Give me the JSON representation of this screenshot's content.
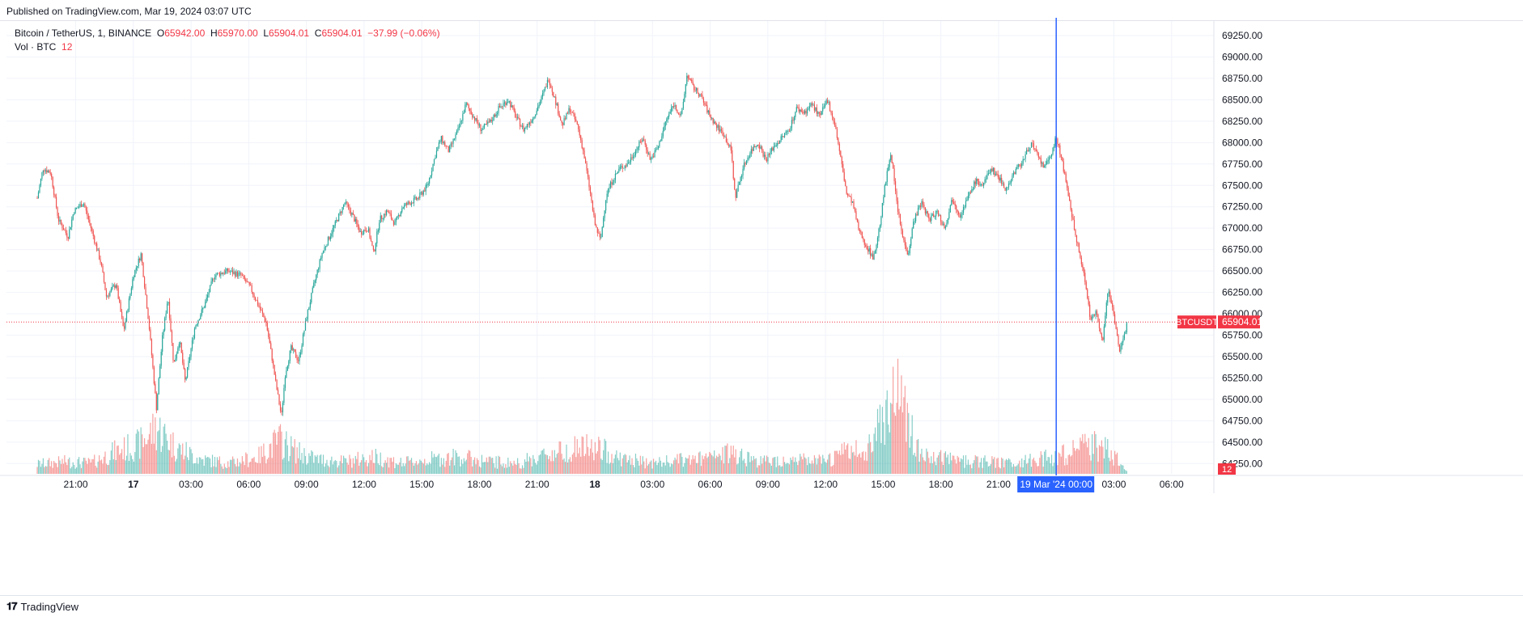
{
  "header": {
    "published": "Published on TradingView.com, Mar 19, 2024 03:07 UTC"
  },
  "legend": {
    "symbol": "Bitcoin / TetherUS, 1, BINANCE",
    "o_label": "O",
    "o_value": "65942.00",
    "h_label": "H",
    "h_value": "65970.00",
    "l_label": "L",
    "l_value": "65904.01",
    "c_label": "C",
    "c_value": "65904.01",
    "change": "−37.99 (−0.06%)",
    "vol_label": "Vol · BTC",
    "vol_value": "12"
  },
  "footer": {
    "brand": "TradingView"
  },
  "colors": {
    "up": "#26a69a",
    "down": "#ef5350",
    "crosshair": "#2962ff",
    "price_line": "#f23645",
    "grid": "#f0f3fa"
  },
  "chart_data": {
    "type": "candlestick",
    "symbol": "BTCUSDT",
    "interval": "1",
    "last_price": 65904.01,
    "last_price_label": "65904.01",
    "last_volume_label": "12",
    "y_axis_ticks": [
      "69250.00",
      "69000.00",
      "68750.00",
      "68500.00",
      "68250.00",
      "68000.00",
      "67750.00",
      "67500.00",
      "67250.00",
      "67000.00",
      "66750.00",
      "66500.00",
      "66250.00",
      "66000.00",
      "65750.00",
      "65500.00",
      "65250.00",
      "65000.00",
      "64750.00",
      "64500.00",
      "64250.00"
    ],
    "ylim": [
      64130,
      69420
    ],
    "x_axis_ticks": [
      "21:00",
      "17",
      "03:00",
      "06:00",
      "09:00",
      "12:00",
      "15:00",
      "18:00",
      "21:00",
      "18",
      "03:00",
      "06:00",
      "09:00",
      "12:00",
      "15:00",
      "18:00",
      "21:00",
      "03:00",
      "06:00"
    ],
    "x_axis_hours": [
      21,
      24,
      27,
      30,
      33,
      36,
      39,
      42,
      45,
      48,
      51,
      54,
      57,
      60,
      63,
      66,
      69,
      75,
      78
    ],
    "crosshair_label": "19 Mar '24   00:00",
    "crosshair_hours": 72,
    "price_path": [
      [
        19.0,
        67350
      ],
      [
        19.3,
        67700
      ],
      [
        19.7,
        67650
      ],
      [
        20.1,
        67100
      ],
      [
        20.6,
        66900
      ],
      [
        20.9,
        67200
      ],
      [
        21.4,
        67300
      ],
      [
        21.8,
        67000
      ],
      [
        22.3,
        66600
      ],
      [
        22.6,
        66200
      ],
      [
        23.1,
        66350
      ],
      [
        23.5,
        65800
      ],
      [
        24.0,
        66450
      ],
      [
        24.4,
        66700
      ],
      [
        24.8,
        65900
      ],
      [
        25.0,
        65400
      ],
      [
        25.2,
        64900
      ],
      [
        25.5,
        65700
      ],
      [
        25.8,
        66200
      ],
      [
        26.1,
        65400
      ],
      [
        26.4,
        65700
      ],
      [
        26.7,
        65200
      ],
      [
        27.2,
        65850
      ],
      [
        27.7,
        66100
      ],
      [
        28.2,
        66450
      ],
      [
        28.9,
        66500
      ],
      [
        29.6,
        66450
      ],
      [
        30.1,
        66300
      ],
      [
        30.6,
        66050
      ],
      [
        30.9,
        65900
      ],
      [
        31.2,
        65500
      ],
      [
        31.4,
        65200
      ],
      [
        31.7,
        64800
      ],
      [
        31.9,
        65300
      ],
      [
        32.2,
        65600
      ],
      [
        32.6,
        65450
      ],
      [
        33.0,
        65950
      ],
      [
        33.4,
        66350
      ],
      [
        33.8,
        66700
      ],
      [
        34.2,
        66900
      ],
      [
        34.6,
        67100
      ],
      [
        35.0,
        67300
      ],
      [
        35.4,
        67150
      ],
      [
        35.8,
        66950
      ],
      [
        36.2,
        67000
      ],
      [
        36.5,
        66700
      ],
      [
        36.8,
        67100
      ],
      [
        37.2,
        67200
      ],
      [
        37.6,
        67050
      ],
      [
        38.0,
        67250
      ],
      [
        38.4,
        67300
      ],
      [
        38.8,
        67350
      ],
      [
        39.3,
        67500
      ],
      [
        39.7,
        67850
      ],
      [
        40.0,
        68050
      ],
      [
        40.4,
        67900
      ],
      [
        40.9,
        68150
      ],
      [
        41.3,
        68450
      ],
      [
        41.7,
        68300
      ],
      [
        42.1,
        68150
      ],
      [
        42.6,
        68250
      ],
      [
        43.0,
        68400
      ],
      [
        43.5,
        68500
      ],
      [
        43.9,
        68300
      ],
      [
        44.3,
        68150
      ],
      [
        44.8,
        68300
      ],
      [
        45.2,
        68500
      ],
      [
        45.6,
        68750
      ],
      [
        46.0,
        68450
      ],
      [
        46.3,
        68200
      ],
      [
        46.7,
        68400
      ],
      [
        47.1,
        68200
      ],
      [
        47.4,
        67900
      ],
      [
        47.7,
        67500
      ],
      [
        48.0,
        67050
      ],
      [
        48.3,
        66850
      ],
      [
        48.6,
        67400
      ],
      [
        48.9,
        67550
      ],
      [
        49.3,
        67700
      ],
      [
        49.7,
        67750
      ],
      [
        50.1,
        67900
      ],
      [
        50.5,
        68050
      ],
      [
        50.9,
        67800
      ],
      [
        51.3,
        67950
      ],
      [
        51.7,
        68250
      ],
      [
        52.1,
        68450
      ],
      [
        52.5,
        68300
      ],
      [
        52.8,
        68800
      ],
      [
        53.1,
        68650
      ],
      [
        53.5,
        68550
      ],
      [
        53.9,
        68350
      ],
      [
        54.3,
        68200
      ],
      [
        54.7,
        68100
      ],
      [
        55.1,
        67900
      ],
      [
        55.3,
        67350
      ],
      [
        55.7,
        67700
      ],
      [
        56.1,
        67900
      ],
      [
        56.5,
        68000
      ],
      [
        56.9,
        67800
      ],
      [
        57.3,
        67950
      ],
      [
        57.7,
        68050
      ],
      [
        58.1,
        68150
      ],
      [
        58.5,
        68400
      ],
      [
        58.9,
        68350
      ],
      [
        59.3,
        68450
      ],
      [
        59.7,
        68300
      ],
      [
        60.1,
        68500
      ],
      [
        60.5,
        68200
      ],
      [
        60.8,
        67800
      ],
      [
        61.1,
        67400
      ],
      [
        61.4,
        67300
      ],
      [
        61.7,
        67000
      ],
      [
        62.1,
        66800
      ],
      [
        62.5,
        66650
      ],
      [
        62.8,
        67000
      ],
      [
        63.1,
        67500
      ],
      [
        63.4,
        67900
      ],
      [
        63.7,
        67300
      ],
      [
        64.0,
        66900
      ],
      [
        64.3,
        66700
      ],
      [
        64.6,
        67100
      ],
      [
        65.0,
        67300
      ],
      [
        65.4,
        67100
      ],
      [
        65.8,
        67200
      ],
      [
        66.2,
        67000
      ],
      [
        66.6,
        67350
      ],
      [
        67.0,
        67150
      ],
      [
        67.4,
        67350
      ],
      [
        67.8,
        67550
      ],
      [
        68.2,
        67500
      ],
      [
        68.6,
        67700
      ],
      [
        69.0,
        67600
      ],
      [
        69.4,
        67450
      ],
      [
        69.8,
        67650
      ],
      [
        70.3,
        67800
      ],
      [
        70.7,
        68000
      ],
      [
        71.0,
        67850
      ],
      [
        71.4,
        67700
      ],
      [
        71.7,
        67850
      ],
      [
        72.0,
        68050
      ],
      [
        72.3,
        67800
      ],
      [
        72.6,
        67400
      ],
      [
        72.9,
        67050
      ],
      [
        73.2,
        66700
      ],
      [
        73.5,
        66400
      ],
      [
        73.8,
        65900
      ],
      [
        74.1,
        66050
      ],
      [
        74.4,
        65650
      ],
      [
        74.7,
        66300
      ],
      [
        75.0,
        66000
      ],
      [
        75.3,
        65550
      ],
      [
        75.5,
        65700
      ],
      [
        75.7,
        65900
      ]
    ],
    "volume_profile_btc": [
      [
        19.0,
        20
      ],
      [
        20.5,
        25
      ],
      [
        21.8,
        22
      ],
      [
        23.0,
        45
      ],
      [
        24.3,
        60
      ],
      [
        25.2,
        95
      ],
      [
        26.2,
        55
      ],
      [
        27.5,
        30
      ],
      [
        29.0,
        22
      ],
      [
        30.5,
        35
      ],
      [
        31.6,
        70
      ],
      [
        32.5,
        45
      ],
      [
        33.5,
        30
      ],
      [
        35.0,
        25
      ],
      [
        36.5,
        35
      ],
      [
        38.0,
        22
      ],
      [
        39.5,
        30
      ],
      [
        41.0,
        35
      ],
      [
        42.5,
        25
      ],
      [
        44.0,
        22
      ],
      [
        45.5,
        40
      ],
      [
        47.2,
        55
      ],
      [
        48.3,
        50
      ],
      [
        49.5,
        30
      ],
      [
        51.0,
        22
      ],
      [
        52.5,
        28
      ],
      [
        54.0,
        32
      ],
      [
        55.3,
        45
      ],
      [
        56.5,
        25
      ],
      [
        58.0,
        30
      ],
      [
        60.0,
        25
      ],
      [
        61.2,
        50
      ],
      [
        62.0,
        40
      ],
      [
        63.7,
        180
      ],
      [
        65.0,
        35
      ],
      [
        66.5,
        30
      ],
      [
        68.0,
        25
      ],
      [
        69.5,
        22
      ],
      [
        71.0,
        30
      ],
      [
        72.5,
        40
      ],
      [
        73.8,
        60
      ],
      [
        74.8,
        45
      ],
      [
        75.7,
        12
      ]
    ]
  }
}
